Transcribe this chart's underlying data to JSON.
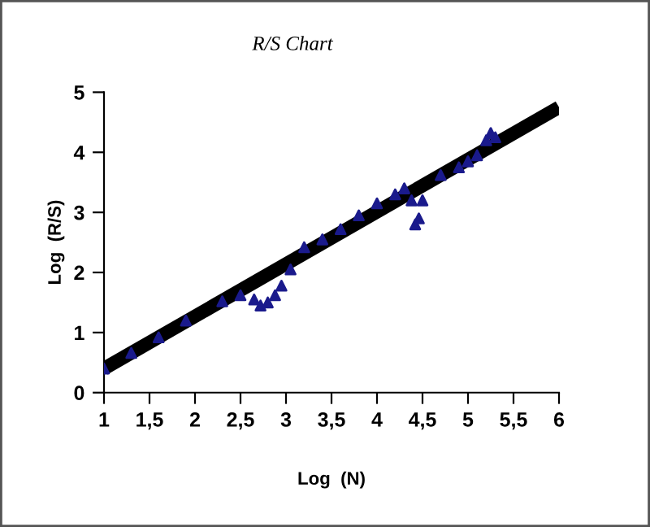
{
  "chart_data": {
    "type": "scatter",
    "title": "R/S Chart",
    "xlabel": "Log  (N)",
    "ylabel": "Log  (R/S)",
    "xlim": [
      1,
      6
    ],
    "ylim": [
      0,
      5
    ],
    "xticks": [
      1,
      {
        "value": 1.5,
        "label": "1,5"
      },
      2,
      {
        "value": 2.5,
        "label": "2,5"
      },
      3,
      {
        "value": 3.5,
        "label": "3,5"
      },
      4,
      {
        "value": 4.5,
        "label": "4,5"
      },
      5,
      {
        "value": 5.5,
        "label": "5,5"
      },
      6
    ],
    "yticks": [
      0,
      1,
      2,
      3,
      4,
      5
    ],
    "grid": false,
    "legend": false,
    "series": [
      {
        "marker": "triangle",
        "color": "#1a1a8c",
        "x": [
          1.0,
          1.3,
          1.6,
          1.9,
          2.3,
          2.5,
          2.65,
          2.72,
          2.8,
          2.88,
          2.95,
          3.05,
          3.2,
          3.4,
          3.6,
          3.8,
          4.0,
          4.2,
          4.3,
          4.38,
          4.42,
          4.46,
          4.5,
          4.7,
          4.9,
          5.0,
          5.1,
          5.2,
          5.25,
          5.3
        ],
        "values": [
          0.4,
          0.66,
          0.92,
          1.2,
          1.52,
          1.62,
          1.55,
          1.45,
          1.5,
          1.62,
          1.78,
          2.05,
          2.42,
          2.55,
          2.72,
          2.95,
          3.15,
          3.3,
          3.4,
          3.2,
          2.8,
          2.9,
          3.2,
          3.62,
          3.75,
          3.85,
          3.95,
          4.2,
          4.32,
          4.25
        ]
      },
      {
        "type": "line",
        "marker": "none",
        "color": "#000000",
        "x": [
          1,
          6
        ],
        "values": [
          0.4,
          4.75
        ]
      }
    ]
  }
}
